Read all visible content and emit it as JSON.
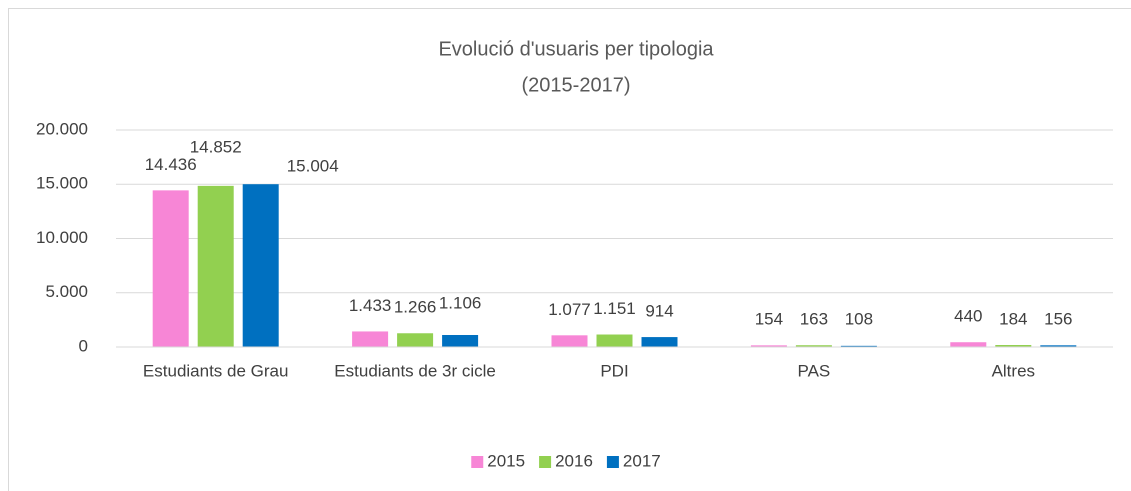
{
  "chart_data": {
    "type": "bar",
    "title": [
      "Evolució d'usuaris per tipologia",
      "(2015-2017)"
    ],
    "categories": [
      "Estudiants de Grau",
      "Estudiants de 3r cicle",
      "PDI",
      "PAS",
      "Altres"
    ],
    "series": [
      {
        "name": "2015",
        "color": "#f786d6",
        "values": [
          14436,
          1433,
          1077,
          154,
          440
        ],
        "value_labels": [
          "14.436",
          "1.433",
          "1.077",
          "154",
          "440"
        ]
      },
      {
        "name": "2016",
        "color": "#92d050",
        "values": [
          14852,
          1266,
          1151,
          163,
          184
        ],
        "value_labels": [
          "14.852",
          "1.266",
          "1.151",
          "163",
          "184"
        ]
      },
      {
        "name": "2017",
        "color": "#0070c0",
        "values": [
          15004,
          1106,
          914,
          108,
          156
        ],
        "value_labels": [
          "15.004",
          "1.106",
          "914",
          "108",
          "156"
        ]
      }
    ],
    "ylim": [
      0,
      20000
    ],
    "yticks": [
      0,
      {
        "value": 5000,
        "label": "5.000"
      },
      {
        "value": 10000,
        "label": "10.000"
      },
      {
        "value": 15000,
        "label": "15.000"
      },
      {
        "value": 20000,
        "label": "20.000"
      }
    ],
    "grid": true,
    "legend": "bottom"
  }
}
